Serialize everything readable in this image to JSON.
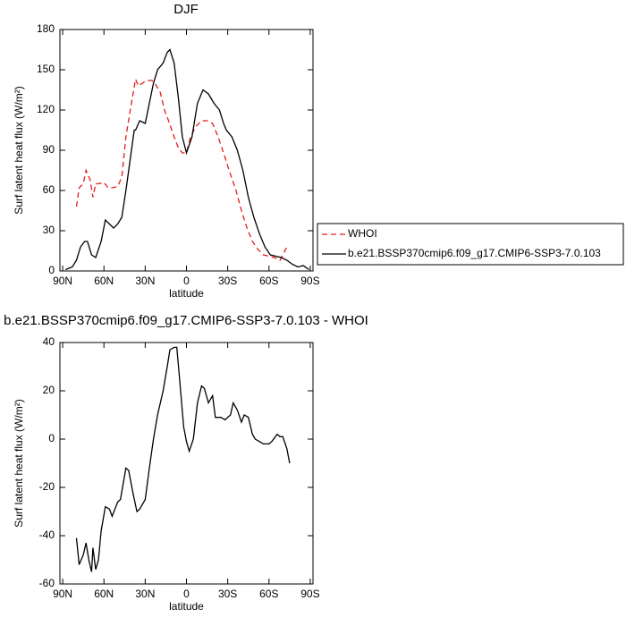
{
  "chart_data": [
    {
      "type": "line",
      "title": "DJF",
      "x_label": "latitude",
      "y_label": "Surf latent heat flux (W/m²)",
      "xlim": [
        92,
        -92
      ],
      "xticks": [
        {
          "value": 90,
          "label": "90N"
        },
        {
          "value": 60,
          "label": "60N"
        },
        {
          "value": 30,
          "label": "30N"
        },
        0,
        {
          "value": -30,
          "label": "30S"
        },
        {
          "value": -60,
          "label": "60S"
        },
        {
          "value": -90,
          "label": "90S"
        }
      ],
      "ylim": [
        0,
        180
      ],
      "yticks": [
        0,
        30,
        60,
        90,
        120,
        150,
        180
      ],
      "legend": "outside right",
      "series": [
        {
          "name": "WHOI",
          "color": "#e41a1c",
          "line_style": "dashed",
          "x": [
            80,
            78,
            75,
            73,
            70,
            68,
            66,
            64,
            60,
            57,
            54,
            50,
            47,
            44,
            40,
            37,
            35,
            32,
            29,
            25,
            23,
            19,
            16,
            13,
            9,
            6,
            3,
            0,
            -3,
            -7,
            -11,
            -15,
            -19,
            -23,
            -27,
            -31,
            -36,
            -40,
            -44,
            -48,
            -52,
            -56,
            -60,
            -64,
            -68,
            -70,
            -73
          ],
          "values": [
            48,
            62,
            65,
            75,
            68,
            55,
            65,
            65,
            66,
            62,
            62,
            63,
            70,
            100,
            125,
            143,
            138,
            140,
            142,
            142,
            140,
            133,
            120,
            112,
            100,
            92,
            88,
            88,
            100,
            108,
            112,
            112,
            110,
            100,
            88,
            75,
            60,
            45,
            32,
            22,
            16,
            12,
            11,
            10,
            8,
            12,
            18
          ]
        },
        {
          "name": "b.e21.BSSP370cmip6.f09_g17.CMIP6-SSP3-7.0.103",
          "color": "#000000",
          "line_style": "solid",
          "x": [
            88,
            83,
            80,
            77,
            74,
            72,
            69,
            66,
            62,
            59,
            56,
            53,
            50,
            47,
            44,
            40,
            38,
            37,
            34,
            30,
            27,
            24,
            21,
            17,
            14,
            12,
            9,
            6,
            3,
            0,
            -4,
            -8,
            -12,
            -16,
            -20,
            -24,
            -27,
            -29,
            -33,
            -37,
            -41,
            -45,
            -49,
            -53,
            -57,
            -61,
            -65,
            -69,
            -73,
            -77,
            -81,
            -85,
            -89
          ],
          "values": [
            1,
            3,
            8,
            18,
            22,
            22,
            12,
            10,
            22,
            38,
            35,
            32,
            35,
            40,
            60,
            90,
            105,
            105,
            112,
            110,
            125,
            140,
            150,
            155,
            163,
            165,
            155,
            130,
            100,
            88,
            100,
            125,
            135,
            132,
            125,
            120,
            110,
            105,
            100,
            90,
            75,
            55,
            40,
            28,
            18,
            12,
            11,
            10,
            8,
            5,
            3,
            4,
            1
          ]
        }
      ]
    },
    {
      "type": "line",
      "title": "b.e21.BSSP370cmip6.f09_g17.CMIP6-SSP3-7.0.103 - WHOI",
      "x_label": "latitude",
      "y_label": "Surf latent heat flux (W/m²)",
      "color": "#000000",
      "xlim": [
        92,
        -92
      ],
      "xticks": [
        {
          "value": 90,
          "label": "90N"
        },
        {
          "value": 60,
          "label": "60N"
        },
        {
          "value": 30,
          "label": "30N"
        },
        0,
        {
          "value": -30,
          "label": "30S"
        },
        {
          "value": -60,
          "label": "60S"
        },
        {
          "value": -90,
          "label": "90S"
        }
      ],
      "ylim": [
        -60,
        40
      ],
      "yticks": [
        -60,
        -40,
        -20,
        0,
        20,
        40
      ],
      "x": [
        80,
        78,
        75,
        73,
        71,
        69,
        68,
        66,
        64,
        62,
        59,
        56,
        54,
        50,
        48,
        44,
        42,
        39,
        36,
        34,
        30,
        27,
        24,
        21,
        17,
        14,
        12,
        9,
        7,
        5,
        2,
        0,
        -2,
        -5,
        -8,
        -11,
        -13,
        -16,
        -19,
        -21,
        -25,
        -28,
        -32,
        -34,
        -37,
        -40,
        -42,
        -45,
        -48,
        -50,
        -53,
        -56,
        -60,
        -62,
        -66,
        -68,
        -70,
        -73,
        -75
      ],
      "values": [
        -41,
        -52,
        -48,
        -43,
        -50,
        -55,
        -45,
        -54,
        -50,
        -38,
        -28,
        -29,
        -32,
        -26,
        -25,
        -12,
        -13,
        -22,
        -30,
        -29,
        -25,
        -12,
        0,
        10,
        20,
        30,
        37,
        38,
        38,
        25,
        5,
        -1,
        -5,
        0,
        15,
        22,
        21,
        15,
        18,
        9,
        9,
        8,
        10,
        15,
        12,
        7,
        10,
        9,
        2,
        0,
        -1,
        -2,
        -2,
        -1,
        2,
        1,
        1,
        -4,
        -10
      ]
    }
  ]
}
